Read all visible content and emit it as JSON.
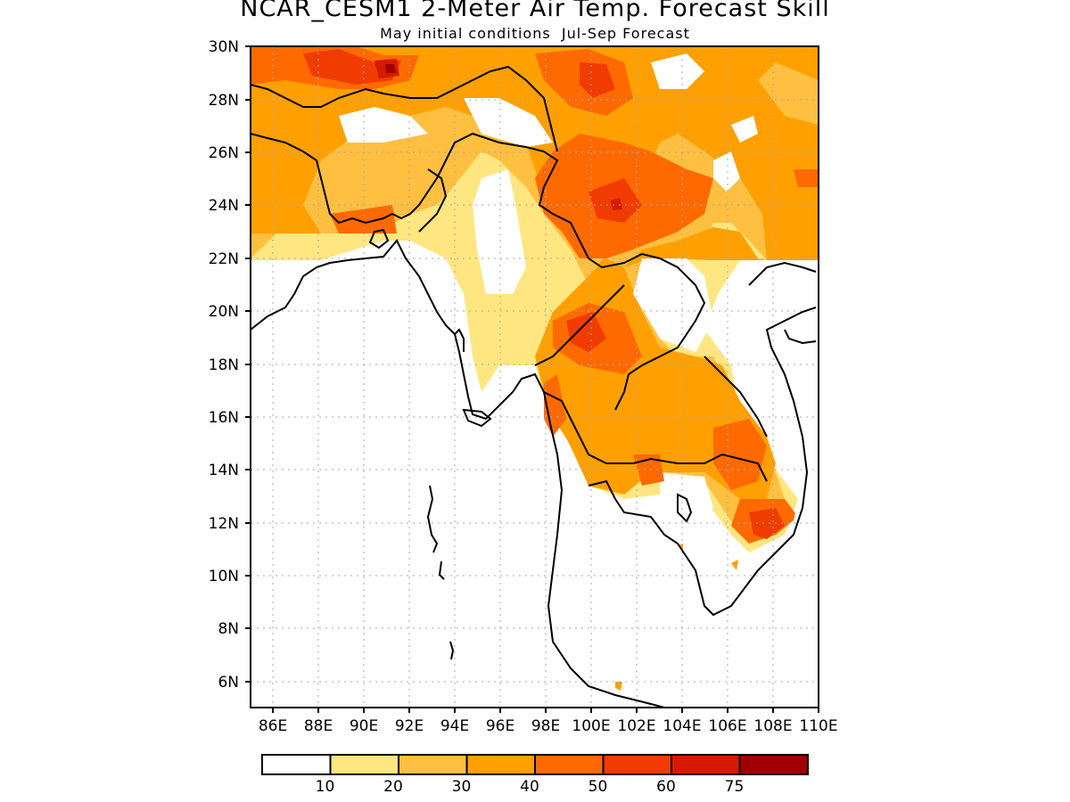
{
  "title": "NCAR_CESM1 2-Meter Air Temp. Forecast Skill",
  "subtitle": "May initial conditions  Jul-Sep Forecast",
  "map": {
    "lon_range": [
      85,
      110
    ],
    "lat_range": [
      5,
      30
    ],
    "lon_tick_labels": [
      "86E",
      "88E",
      "90E",
      "92E",
      "94E",
      "96E",
      "98E",
      "100E",
      "102E",
      "104E",
      "106E",
      "108E",
      "110E"
    ],
    "lat_tick_labels": [
      "6N",
      "8N",
      "10N",
      "12N",
      "14N",
      "16N",
      "18N",
      "20N",
      "22N",
      "24N",
      "26N",
      "28N",
      "30N"
    ],
    "gridlines": "dotted"
  },
  "colorbar": {
    "levels": [
      "10",
      "20",
      "30",
      "40",
      "50",
      "60",
      "75"
    ],
    "colors": [
      "#ffffff",
      "#ffe680",
      "#ffbf40",
      "#ffa000",
      "#ff6a00",
      "#f03c00",
      "#d61a00",
      "#a00000"
    ]
  }
}
